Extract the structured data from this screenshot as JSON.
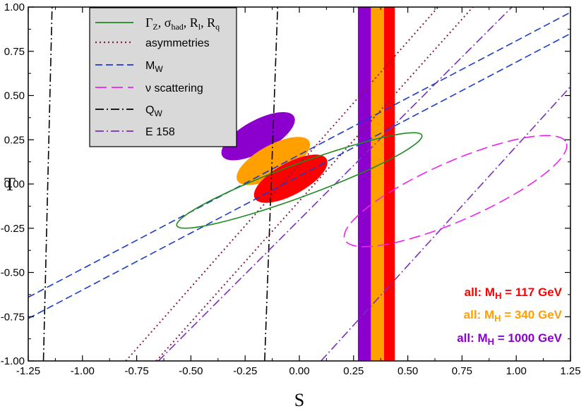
{
  "chart_data": {
    "type": "contour",
    "title": "",
    "xlabel": "S",
    "ylabel": "T",
    "xlim": [
      -1.25,
      1.25
    ],
    "ylim": [
      -1.0,
      1.0
    ],
    "xticks": [
      -1.25,
      -1.0,
      -0.75,
      -0.5,
      -0.25,
      0.0,
      0.25,
      0.5,
      0.75,
      1.0,
      1.25
    ],
    "xtick_labels": [
      "-1.25",
      "-1.00",
      "-0.75",
      "-0.50",
      "-0.25",
      "0.00",
      "0.25",
      "0.50",
      "0.75",
      "1.00",
      "1.25"
    ],
    "yticks": [
      -1.0,
      -0.75,
      -0.5,
      -0.25,
      0.0,
      0.25,
      0.5,
      0.75,
      1.0
    ],
    "ytick_labels": [
      "-1.00",
      "-0.75",
      "-0.50",
      "-0.25",
      "0.00",
      "0.25",
      "0.50",
      "0.75",
      "1.00"
    ],
    "legend": {
      "placement": "top-left",
      "entries": [
        {
          "key": "gamma",
          "label_parts": [
            "Γ",
            "Z",
            ", σ",
            "had",
            ", R",
            "l",
            ", R",
            "q"
          ],
          "color": "#1f8a1f",
          "dash": "solid"
        },
        {
          "key": "asym",
          "label": "asymmetries",
          "color": "#8b1a4a",
          "dash": "dotted"
        },
        {
          "key": "mw",
          "label_parts": [
            "M",
            "W"
          ],
          "color": "#1a3ccc",
          "dash": "dashed"
        },
        {
          "key": "nu",
          "label": "ν scattering",
          "color": "#ee22ee",
          "dash": "longdash"
        },
        {
          "key": "qw",
          "label_parts": [
            "Q",
            "W"
          ],
          "color": "#000000",
          "dash": "dashdot"
        },
        {
          "key": "e158",
          "label": "E 158",
          "color": "#7b2fbe",
          "dash": "dashdot"
        }
      ]
    },
    "constraints": {
      "gamma_ellipse": {
        "center": [
          0.0,
          0.02
        ],
        "semi_axes": [
          0.62,
          0.09
        ],
        "angle_deg": 24.5
      },
      "asymmetries": [
        [
          [
            -0.8,
            -1.0
          ],
          [
            0.64,
            1.0
          ]
        ],
        [
          [
            -0.66,
            -1.0
          ],
          [
            0.8,
            1.0
          ]
        ]
      ],
      "mw": [
        [
          [
            -1.25,
            -0.64
          ],
          [
            1.25,
            0.97
          ]
        ],
        [
          [
            -1.25,
            -0.76
          ],
          [
            1.25,
            0.85
          ]
        ]
      ],
      "nu_ellipse": {
        "center": [
          0.72,
          -0.04
        ],
        "semi_axes": [
          0.58,
          0.16
        ],
        "angle_deg": 29
      },
      "qw": [
        [
          [
            -1.18,
            -1.0
          ],
          [
            -1.14,
            1.0
          ]
        ],
        [
          [
            -0.16,
            -1.0
          ],
          [
            -0.1,
            1.0
          ]
        ]
      ],
      "e158": [
        [
          [
            -0.65,
            -1.0
          ],
          [
            0.98,
            1.0
          ]
        ],
        [
          [
            0.1,
            -1.0
          ],
          [
            1.25,
            0.55
          ]
        ]
      ]
    },
    "ellipses": [
      {
        "label": "all: M_H = 1000 GeV",
        "color": "#8b00cc",
        "center": [
          -0.19,
          0.27
        ],
        "semi_axes": [
          0.2,
          0.085
        ],
        "angle_deg": 36
      },
      {
        "label": "all: M_H = 340 GeV",
        "color": "#ffa000",
        "center": [
          -0.12,
          0.13
        ],
        "semi_axes": [
          0.2,
          0.085
        ],
        "angle_deg": 36
      },
      {
        "label": "all: M_H = 117 GeV",
        "color": "#ff0000",
        "center": [
          -0.04,
          0.03
        ],
        "semi_axes": [
          0.2,
          0.085
        ],
        "angle_deg": 36
      }
    ],
    "bands": [
      {
        "label": "all: M_H = 117 GeV",
        "color": "#ff0000",
        "s_range": [
          0.39,
          0.44
        ]
      },
      {
        "label": "all: M_H = 340 GeV",
        "color": "#ffa000",
        "s_range": [
          0.33,
          0.39
        ]
      },
      {
        "label": "all: M_H = 1000 GeV",
        "color": "#8b00cc",
        "s_range": [
          0.27,
          0.33
        ]
      }
    ],
    "annotations": [
      {
        "prefix": "all: M",
        "sub": "H",
        "suffix": " =   117 GeV",
        "color": "#ff0000"
      },
      {
        "prefix": "all: M",
        "sub": "H",
        "suffix": " =   340 GeV",
        "color": "#ffa000"
      },
      {
        "prefix": "all: M",
        "sub": "H",
        "suffix": " = 1000 GeV",
        "color": "#8b00cc"
      }
    ]
  }
}
